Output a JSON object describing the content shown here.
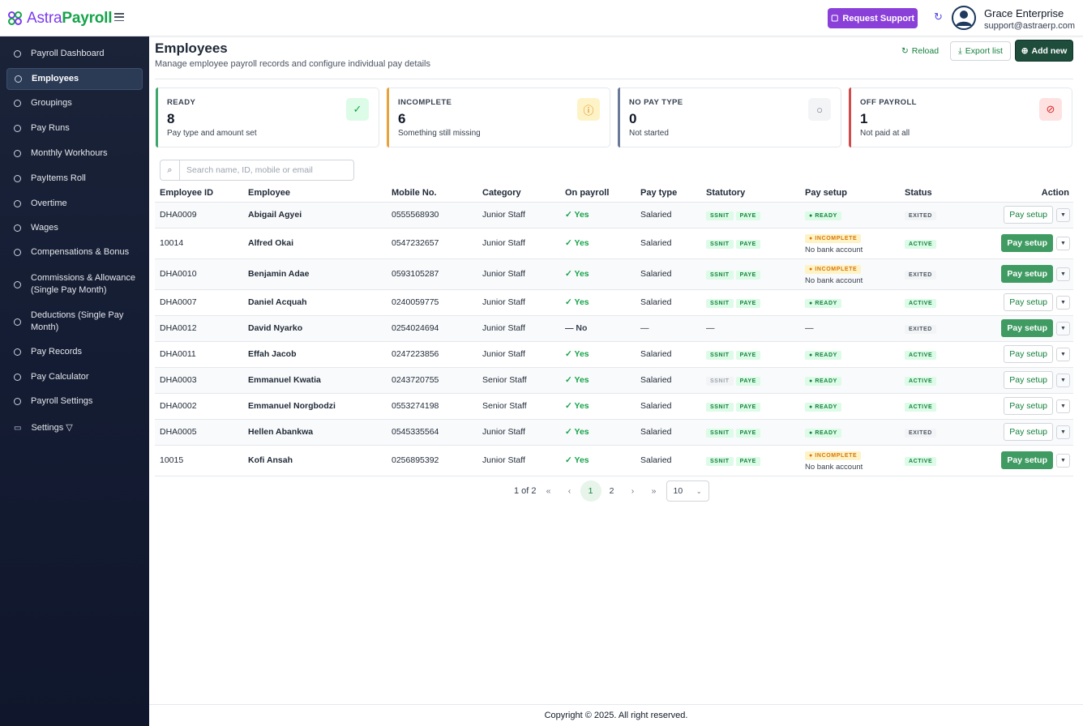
{
  "app": {
    "logo_part1": "Astra",
    "logo_part2": "Payroll"
  },
  "topbar": {
    "support_label": "Request Support",
    "user_name": "Grace Enterprise",
    "user_email": "support@astraerp.com"
  },
  "sidebar": {
    "items": [
      {
        "label": "Payroll Dashboard"
      },
      {
        "label": "Employees",
        "active": true
      },
      {
        "label": "Groupings"
      },
      {
        "label": "Pay Runs"
      },
      {
        "label": "Monthly Workhours"
      },
      {
        "label": "PayItems Roll"
      },
      {
        "label": "Overtime"
      },
      {
        "label": "Wages"
      },
      {
        "label": "Compensations & Bonus"
      },
      {
        "label": "Commissions & Allowance (Single Pay Month)"
      },
      {
        "label": "Deductions (Single Pay Month)"
      },
      {
        "label": "Pay Records"
      },
      {
        "label": "Pay Calculator"
      },
      {
        "label": "Payroll Settings"
      },
      {
        "label": "Settings ▽"
      }
    ]
  },
  "page": {
    "title": "Employees",
    "subtitle": "Manage employee payroll records and configure individual pay details",
    "reload_label": "Reload",
    "export_label": "Export list",
    "add_label": "Add new"
  },
  "cards": [
    {
      "title": "READY",
      "value": "8",
      "sub": "Pay type and amount set",
      "color": "#3fa66b",
      "icon": "check-circle-icon"
    },
    {
      "title": "INCOMPLETE",
      "value": "6",
      "sub": "Something still missing",
      "color": "#e8a23c",
      "icon": "alert-circle-icon"
    },
    {
      "title": "NO PAY TYPE",
      "value": "0",
      "sub": "Not started",
      "color": "#6b7a99",
      "icon": "empty-circle-icon"
    },
    {
      "title": "OFF PAYROLL",
      "value": "1",
      "sub": "Not paid at all",
      "color": "#d24b4b",
      "icon": "ban-icon"
    }
  ],
  "search": {
    "placeholder": "Search name, ID, mobile or email"
  },
  "table": {
    "headers": [
      "Employee ID",
      "Employee",
      "Mobile No.",
      "Category",
      "On payroll",
      "Pay type",
      "Statutory",
      "Pay setup",
      "Status",
      "Action"
    ],
    "rows": [
      {
        "id": "DHA0009",
        "name": "Abigail Agyei",
        "mobile": "0555568930",
        "category": "Junior Staff",
        "on_payroll": "Yes",
        "pay_type": "Salaried",
        "ssnit": "SSNIT",
        "paye": "PAYE",
        "setup": "READY",
        "setup_note": "",
        "status": "EXITED",
        "action": "Pay setup"
      },
      {
        "id": "10014",
        "name": "Alfred Okai",
        "mobile": "0547232657",
        "category": "Junior Staff",
        "on_payroll": "Yes",
        "pay_type": "Salaried",
        "ssnit": "SSNIT",
        "paye": "PAYE",
        "setup": "INCOMPLETE",
        "setup_note": "No bank account",
        "status": "ACTIVE",
        "action": "Pay setup"
      },
      {
        "id": "DHA0010",
        "name": "Benjamin Adae",
        "mobile": "0593105287",
        "category": "Junior Staff",
        "on_payroll": "Yes",
        "pay_type": "Salaried",
        "ssnit": "SSNIT",
        "paye": "PAYE",
        "setup": "INCOMPLETE",
        "setup_note": "No bank account",
        "status": "EXITED",
        "action": "Pay setup"
      },
      {
        "id": "DHA0007",
        "name": "Daniel Acquah",
        "mobile": "0240059775",
        "category": "Junior Staff",
        "on_payroll": "Yes",
        "pay_type": "Salaried",
        "ssnit": "SSNIT",
        "paye": "PAYE",
        "setup": "READY",
        "setup_note": "",
        "status": "ACTIVE",
        "action": "Pay setup"
      },
      {
        "id": "DHA0012",
        "name": "David Nyarko",
        "mobile": "0254024694",
        "category": "Junior Staff",
        "on_payroll": "No",
        "pay_type": "—",
        "ssnit": "",
        "paye": "",
        "statutory_text": "—",
        "setup": "",
        "setup_text": "—",
        "setup_note": "",
        "status": "EXITED",
        "action": "Pay setup"
      },
      {
        "id": "DHA0011",
        "name": "Effah Jacob",
        "mobile": "0247223856",
        "category": "Junior Staff",
        "on_payroll": "Yes",
        "pay_type": "Salaried",
        "ssnit": "SSNIT",
        "paye": "PAYE",
        "setup": "READY",
        "setup_note": "",
        "status": "ACTIVE",
        "action": "Pay setup"
      },
      {
        "id": "DHA0003",
        "name": "Emmanuel Kwatia",
        "mobile": "0243720755",
        "category": "Senior Staff",
        "on_payroll": "Yes",
        "pay_type": "Salaried",
        "ssnit": "SSNIT",
        "ssnit_off": true,
        "paye": "PAYE",
        "setup": "READY",
        "setup_note": "",
        "status": "ACTIVE",
        "action": "Pay setup"
      },
      {
        "id": "DHA0002",
        "name": "Emmanuel Norgbodzi",
        "mobile": "0553274198",
        "category": "Senior Staff",
        "on_payroll": "Yes",
        "pay_type": "Salaried",
        "ssnit": "SSNIT",
        "paye": "PAYE",
        "setup": "READY",
        "setup_note": "",
        "status": "ACTIVE",
        "action": "Pay setup"
      },
      {
        "id": "DHA0005",
        "name": "Hellen Abankwa",
        "mobile": "0545335564",
        "category": "Junior Staff",
        "on_payroll": "Yes",
        "pay_type": "Salaried",
        "ssnit": "SSNIT",
        "paye": "PAYE",
        "setup": "READY",
        "setup_note": "",
        "status": "EXITED",
        "action": "Pay setup"
      },
      {
        "id": "10015",
        "name": "Kofi Ansah",
        "mobile": "0256895392",
        "category": "Junior Staff",
        "on_payroll": "Yes",
        "pay_type": "Salaried",
        "ssnit": "SSNIT",
        "paye": "PAYE",
        "setup": "INCOMPLETE",
        "setup_note": "No bank account",
        "status": "ACTIVE",
        "action": "Pay setup"
      }
    ]
  },
  "pagination": {
    "info": "1 of 2",
    "first": "«",
    "prev": "‹",
    "pages": [
      "1",
      "2"
    ],
    "current": "1",
    "next": "›",
    "last": "»",
    "per_page": "10"
  },
  "footer": {
    "text": "Copyright © 2025. All right reserved."
  }
}
